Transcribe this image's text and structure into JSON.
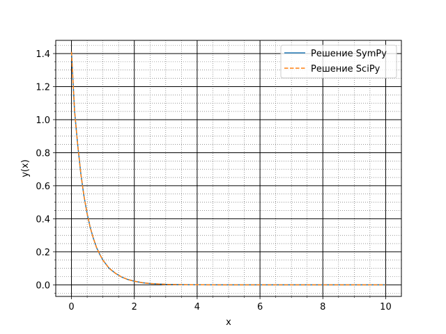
{
  "chart_data": {
    "type": "line",
    "xlabel": "x",
    "ylabel": "y(x)",
    "xlim": [
      -0.5,
      10.5
    ],
    "ylim": [
      -0.07,
      1.48
    ],
    "xticks": [
      0,
      2,
      4,
      6,
      8,
      10
    ],
    "yticks": [
      0.0,
      0.2,
      0.4,
      0.6,
      0.8,
      1.0,
      1.2,
      1.4
    ],
    "xtick_labels": [
      "0",
      "2",
      "4",
      "6",
      "8",
      "10"
    ],
    "ytick_labels": [
      "0.0",
      "0.2",
      "0.4",
      "0.6",
      "0.8",
      "1.0",
      "1.2",
      "1.4"
    ],
    "grid": {
      "major": true,
      "minor": true,
      "minor_style": "dotted"
    },
    "legend_position": "top-right",
    "series": [
      {
        "name": "Решение SymPy",
        "color": "#1f77b4",
        "style": "solid",
        "x": [
          0,
          0.1,
          0.2,
          0.3,
          0.4,
          0.5,
          0.6,
          0.7,
          0.8,
          0.9,
          1.0,
          1.2,
          1.4,
          1.6,
          1.8,
          2.0,
          2.25,
          2.5,
          3.0,
          3.5,
          4.0,
          5.0,
          6.0,
          7.0,
          8.0,
          9.0,
          10.0
        ],
        "y": [
          1.41,
          1.05,
          0.845,
          0.67,
          0.535,
          0.43,
          0.345,
          0.28,
          0.225,
          0.185,
          0.15,
          0.1,
          0.07,
          0.047,
          0.032,
          0.022,
          0.013,
          0.008,
          0.003,
          0.001,
          0.0004,
          0.0,
          0.0,
          0.0,
          0.0,
          0.0,
          0.0
        ]
      },
      {
        "name": "Решение SciPy",
        "color": "#ff7f0e",
        "style": "dashed",
        "x": [
          0,
          0.1,
          0.2,
          0.3,
          0.4,
          0.5,
          0.6,
          0.7,
          0.8,
          0.9,
          1.0,
          1.2,
          1.4,
          1.6,
          1.8,
          2.0,
          2.25,
          2.5,
          3.0,
          3.5,
          4.0,
          5.0,
          6.0,
          7.0,
          8.0,
          9.0,
          10.0
        ],
        "y": [
          1.41,
          1.05,
          0.845,
          0.67,
          0.535,
          0.43,
          0.345,
          0.28,
          0.225,
          0.185,
          0.15,
          0.1,
          0.07,
          0.047,
          0.032,
          0.022,
          0.013,
          0.008,
          0.003,
          0.001,
          0.0004,
          0.0,
          0.0,
          0.0,
          0.0,
          0.0,
          0.0
        ]
      }
    ]
  }
}
